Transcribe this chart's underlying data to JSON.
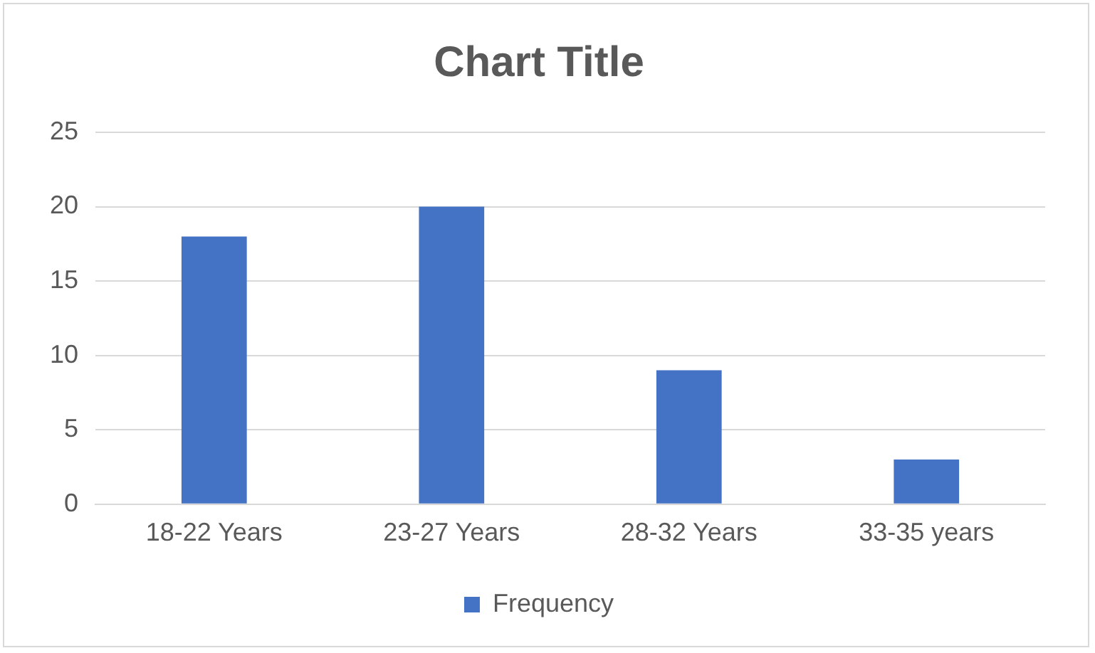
{
  "chart_data": {
    "type": "bar",
    "title": "Chart Title",
    "categories": [
      "18-22 Years",
      "23-27 Years",
      "28-32 Years",
      "33-35 years"
    ],
    "series": [
      {
        "name": "Frequency",
        "color": "#4472c4",
        "values": [
          18,
          20,
          9,
          3
        ]
      }
    ],
    "ylim": [
      0,
      25
    ],
    "yticks": [
      0,
      5,
      10,
      15,
      20,
      25
    ],
    "grid": "y",
    "legend": "bottom"
  }
}
